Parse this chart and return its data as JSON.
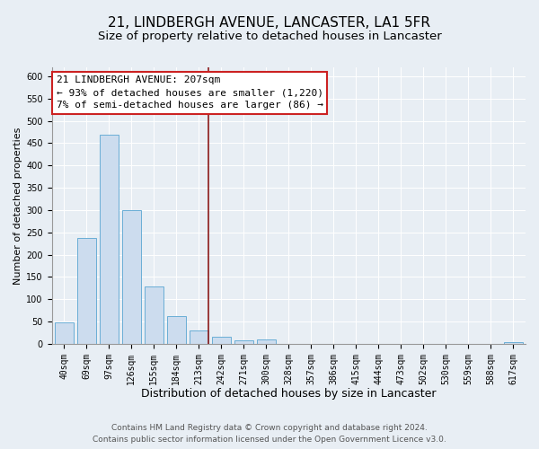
{
  "title": "21, LINDBERGH AVENUE, LANCASTER, LA1 5FR",
  "subtitle": "Size of property relative to detached houses in Lancaster",
  "xlabel": "Distribution of detached houses by size in Lancaster",
  "ylabel": "Number of detached properties",
  "bar_labels": [
    "40sqm",
    "69sqm",
    "97sqm",
    "126sqm",
    "155sqm",
    "184sqm",
    "213sqm",
    "242sqm",
    "271sqm",
    "300sqm",
    "328sqm",
    "357sqm",
    "386sqm",
    "415sqm",
    "444sqm",
    "473sqm",
    "502sqm",
    "530sqm",
    "559sqm",
    "588sqm",
    "617sqm"
  ],
  "bar_values": [
    49,
    237,
    468,
    299,
    128,
    62,
    29,
    15,
    7,
    10,
    0,
    0,
    0,
    0,
    0,
    0,
    0,
    0,
    0,
    0,
    4
  ],
  "bar_color": "#ccdcee",
  "bar_edge_color": "#6aaed6",
  "vline_color": "#8b1a1a",
  "annotation_line1": "21 LINDBERGH AVENUE: 207sqm",
  "annotation_line2": "← 93% of detached houses are smaller (1,220)",
  "annotation_line3": "7% of semi-detached houses are larger (86) →",
  "annotation_box_color": "#ffffff",
  "annotation_box_edge": "#cc2222",
  "ylim": [
    0,
    620
  ],
  "yticks": [
    0,
    50,
    100,
    150,
    200,
    250,
    300,
    350,
    400,
    450,
    500,
    550,
    600
  ],
  "bg_color": "#e8eef4",
  "plot_bg_color": "#e8eef4",
  "grid_color": "#ffffff",
  "footnote": "Contains HM Land Registry data © Crown copyright and database right 2024.\nContains public sector information licensed under the Open Government Licence v3.0.",
  "title_fontsize": 11,
  "subtitle_fontsize": 9.5,
  "xlabel_fontsize": 9,
  "ylabel_fontsize": 8,
  "tick_fontsize": 7,
  "annotation_fontsize": 8,
  "footnote_fontsize": 6.5
}
